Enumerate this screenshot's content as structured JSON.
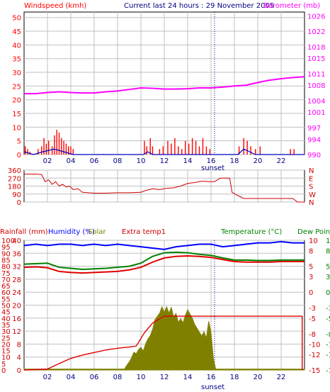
{
  "header": {
    "windspeed_label": "Windspeed (kmh)",
    "title": "Current last 24 hours : 29 November 2005",
    "barometer_label": "Barometer (mb)"
  },
  "bottom_header": {
    "rainfall_label": "Rainfall (mm)",
    "humidity_label": "Humidity (%)",
    "solar_label": "Solar",
    "extra_label": "Extra temp1",
    "temperature_label": "Temperature (°C)",
    "dewpoint_label": "Dew Point"
  },
  "colors": {
    "wind": "#ff0000",
    "gust": "#0000c0",
    "barometer": "#ff00ff",
    "direction": "#d00000",
    "humidity": "#0000ff",
    "temperature": "#e00000",
    "dewpoint": "#008000",
    "solar": "#808000",
    "rain": "#e00000",
    "extra": "#e00000",
    "frame": "#000000",
    "grid": "#c0c0c0",
    "sunset": "#000080"
  },
  "chart_data": [
    {
      "type": "bar",
      "title": "Windspeed (kmh) / Barometer (mb)",
      "x_ticks": [
        "02",
        "04",
        "06",
        "08",
        "10",
        "12",
        "14",
        "16",
        "18",
        "20",
        "22"
      ],
      "x_tick_hours": [
        2,
        4,
        6,
        8,
        10,
        12,
        14,
        16,
        18,
        20,
        22
      ],
      "sunset_label": "sunset",
      "sunset_hour": 16.3,
      "y_left_ticks": [
        0,
        5,
        10,
        15,
        20,
        25,
        30,
        35,
        40,
        45,
        50
      ],
      "y_left_range": [
        0,
        52
      ],
      "y_right_ticks": [
        990,
        994,
        997,
        1001,
        1004,
        1008,
        1011,
        1015,
        1018,
        1022,
        1026
      ],
      "y_right_range": [
        990,
        1027
      ],
      "wind_bars": [
        {
          "h": 0.1,
          "v": 3
        },
        {
          "h": 0.3,
          "v": 2
        },
        {
          "h": 0.5,
          "v": 1
        },
        {
          "h": 1.2,
          "v": 2
        },
        {
          "h": 1.5,
          "v": 3
        },
        {
          "h": 1.7,
          "v": 6
        },
        {
          "h": 1.9,
          "v": 4
        },
        {
          "h": 2.1,
          "v": 5
        },
        {
          "h": 2.4,
          "v": 3
        },
        {
          "h": 2.6,
          "v": 7
        },
        {
          "h": 2.8,
          "v": 9
        },
        {
          "h": 3.0,
          "v": 8
        },
        {
          "h": 3.2,
          "v": 6
        },
        {
          "h": 3.4,
          "v": 5
        },
        {
          "h": 3.6,
          "v": 4
        },
        {
          "h": 3.8,
          "v": 3
        },
        {
          "h": 4.0,
          "v": 3
        },
        {
          "h": 4.2,
          "v": 2
        },
        {
          "h": 10.3,
          "v": 5
        },
        {
          "h": 10.5,
          "v": 3
        },
        {
          "h": 10.8,
          "v": 6
        },
        {
          "h": 11.0,
          "v": 3
        },
        {
          "h": 11.6,
          "v": 2
        },
        {
          "h": 11.9,
          "v": 3
        },
        {
          "h": 12.3,
          "v": 5
        },
        {
          "h": 12.6,
          "v": 4
        },
        {
          "h": 12.9,
          "v": 6
        },
        {
          "h": 13.2,
          "v": 3
        },
        {
          "h": 13.5,
          "v": 2
        },
        {
          "h": 13.8,
          "v": 5
        },
        {
          "h": 14.1,
          "v": 4
        },
        {
          "h": 14.4,
          "v": 6
        },
        {
          "h": 14.7,
          "v": 5
        },
        {
          "h": 15.0,
          "v": 3
        },
        {
          "h": 15.3,
          "v": 6
        },
        {
          "h": 15.6,
          "v": 3
        },
        {
          "h": 15.9,
          "v": 2
        },
        {
          "h": 18.4,
          "v": 3
        },
        {
          "h": 18.8,
          "v": 6
        },
        {
          "h": 19.1,
          "v": 5
        },
        {
          "h": 19.4,
          "v": 3
        },
        {
          "h": 19.8,
          "v": 2
        },
        {
          "h": 20.2,
          "v": 3
        },
        {
          "h": 22.8,
          "v": 2
        },
        {
          "h": 23.1,
          "v": 2
        }
      ],
      "gust_line": [
        {
          "h": 0,
          "v": 1
        },
        {
          "h": 0.8,
          "v": 0
        },
        {
          "h": 1.6,
          "v": 1
        },
        {
          "h": 2.6,
          "v": 2
        },
        {
          "h": 3.4,
          "v": 1
        },
        {
          "h": 4.2,
          "v": 0
        },
        {
          "h": 10.2,
          "v": 0
        },
        {
          "h": 10.6,
          "v": 1
        },
        {
          "h": 11.0,
          "v": 0
        },
        {
          "h": 18.3,
          "v": 0
        },
        {
          "h": 18.8,
          "v": 2
        },
        {
          "h": 19.3,
          "v": 1
        },
        {
          "h": 19.8,
          "v": 0
        },
        {
          "h": 24,
          "v": 0
        }
      ],
      "barometer": [
        {
          "h": 0,
          "v": 1005.8
        },
        {
          "h": 1,
          "v": 1005.8
        },
        {
          "h": 2,
          "v": 1006.1
        },
        {
          "h": 3,
          "v": 1006.3
        },
        {
          "h": 4,
          "v": 1006.1
        },
        {
          "h": 5,
          "v": 1006.0
        },
        {
          "h": 6,
          "v": 1006.0
        },
        {
          "h": 7,
          "v": 1006.3
        },
        {
          "h": 8,
          "v": 1006.5
        },
        {
          "h": 9,
          "v": 1006.9
        },
        {
          "h": 10,
          "v": 1007.3
        },
        {
          "h": 11,
          "v": 1007.2
        },
        {
          "h": 12,
          "v": 1007.0
        },
        {
          "h": 13,
          "v": 1007.0
        },
        {
          "h": 14,
          "v": 1007.1
        },
        {
          "h": 15,
          "v": 1007.3
        },
        {
          "h": 16,
          "v": 1007.3
        },
        {
          "h": 17,
          "v": 1007.5
        },
        {
          "h": 18,
          "v": 1007.8
        },
        {
          "h": 19,
          "v": 1008.0
        },
        {
          "h": 20,
          "v": 1008.7
        },
        {
          "h": 21,
          "v": 1009.3
        },
        {
          "h": 22,
          "v": 1009.7
        },
        {
          "h": 23,
          "v": 1010.0
        },
        {
          "h": 24,
          "v": 1010.2
        }
      ]
    },
    {
      "type": "line",
      "title": "Wind direction",
      "y_left_ticks": [
        0,
        90,
        180,
        270,
        360
      ],
      "y_range": [
        0,
        360
      ],
      "y_right_labels": [
        "N",
        "W",
        "S",
        "E",
        "N"
      ],
      "direction": [
        {
          "h": 0,
          "v": 315
        },
        {
          "h": 1,
          "v": 315
        },
        {
          "h": 1.5,
          "v": 310
        },
        {
          "h": 1.8,
          "v": 230
        },
        {
          "h": 2.1,
          "v": 250
        },
        {
          "h": 2.4,
          "v": 200
        },
        {
          "h": 2.7,
          "v": 230
        },
        {
          "h": 3.0,
          "v": 180
        },
        {
          "h": 3.3,
          "v": 200
        },
        {
          "h": 3.6,
          "v": 170
        },
        {
          "h": 3.9,
          "v": 180
        },
        {
          "h": 4.2,
          "v": 140
        },
        {
          "h": 4.6,
          "v": 150
        },
        {
          "h": 5,
          "v": 110
        },
        {
          "h": 6,
          "v": 100
        },
        {
          "h": 7,
          "v": 100
        },
        {
          "h": 8,
          "v": 105
        },
        {
          "h": 9,
          "v": 105
        },
        {
          "h": 10,
          "v": 110
        },
        {
          "h": 10.4,
          "v": 130
        },
        {
          "h": 11,
          "v": 150
        },
        {
          "h": 11.6,
          "v": 140
        },
        {
          "h": 12.2,
          "v": 155
        },
        {
          "h": 12.8,
          "v": 160
        },
        {
          "h": 13.4,
          "v": 180
        },
        {
          "h": 14,
          "v": 210
        },
        {
          "h": 14.6,
          "v": 220
        },
        {
          "h": 15.2,
          "v": 235
        },
        {
          "h": 15.8,
          "v": 230
        },
        {
          "h": 16.3,
          "v": 230
        },
        {
          "h": 16.8,
          "v": 270
        },
        {
          "h": 17.6,
          "v": 270
        },
        {
          "h": 17.8,
          "v": 110
        },
        {
          "h": 18.2,
          "v": 80
        },
        {
          "h": 18.5,
          "v": 60
        },
        {
          "h": 18.8,
          "v": 40
        },
        {
          "h": 19.2,
          "v": 40
        },
        {
          "h": 20,
          "v": 40
        },
        {
          "h": 21,
          "v": 40
        },
        {
          "h": 22,
          "v": 40
        },
        {
          "h": 23,
          "v": 40
        },
        {
          "h": 23.4,
          "v": 0
        },
        {
          "h": 24,
          "v": 0
        }
      ]
    },
    {
      "type": "line",
      "title": "Rainfall / Humidity / Solar / Extra temp1 / Temperature / Dew Point",
      "x_ticks": [
        "02",
        "04",
        "06",
        "08",
        "10",
        "12",
        "14",
        "16",
        "18",
        "20",
        "22"
      ],
      "x_tick_hours": [
        2,
        4,
        6,
        8,
        10,
        12,
        14,
        16,
        18,
        20,
        22
      ],
      "sunset_label": "sunset",
      "sunset_hour": 16.3,
      "y_left_outer_ticks": [
        0,
        5,
        10,
        15,
        20,
        25,
        30,
        35,
        40,
        45,
        50,
        55,
        60,
        65,
        70,
        75,
        80,
        85,
        90,
        95,
        100
      ],
      "y_left_inner_ticks": [
        0,
        4,
        8,
        12,
        16,
        20,
        24,
        28,
        32,
        36,
        40
      ],
      "y_right_inner_ticks": [
        -15,
        -12,
        -10,
        -8,
        -5,
        -3,
        0,
        3,
        5,
        8,
        10
      ],
      "y_right_outer_ticks": [
        -15,
        -12,
        -10,
        -8,
        -5,
        -3,
        0,
        3,
        5,
        8,
        10
      ],
      "humidity": [
        {
          "h": 0,
          "v": 96
        },
        {
          "h": 1,
          "v": 97
        },
        {
          "h": 2,
          "v": 96
        },
        {
          "h": 3,
          "v": 97
        },
        {
          "h": 4,
          "v": 97
        },
        {
          "h": 5,
          "v": 96
        },
        {
          "h": 6,
          "v": 97
        },
        {
          "h": 7,
          "v": 96
        },
        {
          "h": 8,
          "v": 97
        },
        {
          "h": 9,
          "v": 96
        },
        {
          "h": 10,
          "v": 95
        },
        {
          "h": 11,
          "v": 94
        },
        {
          "h": 12,
          "v": 93
        },
        {
          "h": 13,
          "v": 95
        },
        {
          "h": 14,
          "v": 96
        },
        {
          "h": 15,
          "v": 97
        },
        {
          "h": 16,
          "v": 97
        },
        {
          "h": 17,
          "v": 95
        },
        {
          "h": 18,
          "v": 96
        },
        {
          "h": 19,
          "v": 97
        },
        {
          "h": 20,
          "v": 98
        },
        {
          "h": 21,
          "v": 98
        },
        {
          "h": 22,
          "v": 99
        },
        {
          "h": 23,
          "v": 98
        },
        {
          "h": 24,
          "v": 98
        }
      ],
      "temperature": [
        {
          "h": 0,
          "v": 4.8
        },
        {
          "h": 1,
          "v": 4.9
        },
        {
          "h": 2,
          "v": 4.7
        },
        {
          "h": 3,
          "v": 4.0
        },
        {
          "h": 4,
          "v": 3.8
        },
        {
          "h": 5,
          "v": 3.7
        },
        {
          "h": 6,
          "v": 3.8
        },
        {
          "h": 7,
          "v": 3.9
        },
        {
          "h": 8,
          "v": 4.0
        },
        {
          "h": 9,
          "v": 4.3
        },
        {
          "h": 10,
          "v": 4.8
        },
        {
          "h": 11,
          "v": 5.8
        },
        {
          "h": 12,
          "v": 6.6
        },
        {
          "h": 13,
          "v": 6.9
        },
        {
          "h": 14,
          "v": 7.0
        },
        {
          "h": 15,
          "v": 6.9
        },
        {
          "h": 16,
          "v": 6.7
        },
        {
          "h": 17,
          "v": 6.3
        },
        {
          "h": 18,
          "v": 5.9
        },
        {
          "h": 19,
          "v": 5.8
        },
        {
          "h": 20,
          "v": 5.8
        },
        {
          "h": 21,
          "v": 5.8
        },
        {
          "h": 22,
          "v": 5.9
        },
        {
          "h": 23,
          "v": 5.9
        },
        {
          "h": 24,
          "v": 5.9
        }
      ],
      "dew_point": [
        {
          "h": 0,
          "v": 5.4
        },
        {
          "h": 1,
          "v": 5.5
        },
        {
          "h": 2,
          "v": 5.6
        },
        {
          "h": 3,
          "v": 4.8
        },
        {
          "h": 4,
          "v": 4.6
        },
        {
          "h": 5,
          "v": 4.4
        },
        {
          "h": 6,
          "v": 4.5
        },
        {
          "h": 7,
          "v": 4.6
        },
        {
          "h": 8,
          "v": 4.8
        },
        {
          "h": 9,
          "v": 5.0
        },
        {
          "h": 10,
          "v": 5.6
        },
        {
          "h": 11,
          "v": 6.9
        },
        {
          "h": 12,
          "v": 7.6
        },
        {
          "h": 13,
          "v": 7.7
        },
        {
          "h": 14,
          "v": 7.6
        },
        {
          "h": 15,
          "v": 7.3
        },
        {
          "h": 16,
          "v": 7.1
        },
        {
          "h": 17,
          "v": 6.6
        },
        {
          "h": 18,
          "v": 6.2
        },
        {
          "h": 19,
          "v": 6.2
        },
        {
          "h": 20,
          "v": 6.1
        },
        {
          "h": 21,
          "v": 6.1
        },
        {
          "h": 22,
          "v": 6.2
        },
        {
          "h": 23,
          "v": 6.2
        },
        {
          "h": 24,
          "v": 6.2
        }
      ],
      "rainfall": [
        {
          "h": 0,
          "v": 0
        },
        {
          "h": 2,
          "v": 0.3
        },
        {
          "h": 3,
          "v": 2.0
        },
        {
          "h": 4,
          "v": 3.6
        },
        {
          "h": 5,
          "v": 4.6
        },
        {
          "h": 6,
          "v": 5.4
        },
        {
          "h": 7,
          "v": 6.2
        },
        {
          "h": 8,
          "v": 6.7
        },
        {
          "h": 9,
          "v": 7.1
        },
        {
          "h": 9.6,
          "v": 7.4
        },
        {
          "h": 10.3,
          "v": 11.5
        },
        {
          "h": 11,
          "v": 14.5
        },
        {
          "h": 11.7,
          "v": 16.0
        },
        {
          "h": 12,
          "v": 16.6
        },
        {
          "h": 23.8,
          "v": 16.6
        },
        {
          "h": 23.8,
          "v": 0
        }
      ],
      "solar": [
        {
          "h": 0,
          "v": 0.3
        },
        {
          "h": 8.6,
          "v": 0.3
        },
        {
          "h": 8.8,
          "v": 1.5
        },
        {
          "h": 9.1,
          "v": 3
        },
        {
          "h": 9.4,
          "v": 5.5
        },
        {
          "h": 9.6,
          "v": 5
        },
        {
          "h": 9.8,
          "v": 6.3
        },
        {
          "h": 10.0,
          "v": 7
        },
        {
          "h": 10.2,
          "v": 5.8
        },
        {
          "h": 10.4,
          "v": 8
        },
        {
          "h": 10.6,
          "v": 9.6
        },
        {
          "h": 10.8,
          "v": 10.6
        },
        {
          "h": 11.0,
          "v": 12.5
        },
        {
          "h": 11.2,
          "v": 15.5
        },
        {
          "h": 11.4,
          "v": 16.5
        },
        {
          "h": 11.6,
          "v": 17.5
        },
        {
          "h": 11.8,
          "v": 19.5
        },
        {
          "h": 12.0,
          "v": 17.7
        },
        {
          "h": 12.2,
          "v": 19.5
        },
        {
          "h": 12.4,
          "v": 17.5
        },
        {
          "h": 12.6,
          "v": 19.3
        },
        {
          "h": 12.8,
          "v": 16.3
        },
        {
          "h": 13.0,
          "v": 17.4
        },
        {
          "h": 13.2,
          "v": 14.7
        },
        {
          "h": 13.4,
          "v": 15.8
        },
        {
          "h": 13.6,
          "v": 14.5
        },
        {
          "h": 13.8,
          "v": 16.8
        },
        {
          "h": 14.0,
          "v": 18.6
        },
        {
          "h": 14.2,
          "v": 17.2
        },
        {
          "h": 14.4,
          "v": 16
        },
        {
          "h": 14.6,
          "v": 14
        },
        {
          "h": 14.8,
          "v": 12.9
        },
        {
          "h": 15.0,
          "v": 11.7
        },
        {
          "h": 15.2,
          "v": 10.5
        },
        {
          "h": 15.4,
          "v": 11.8
        },
        {
          "h": 15.6,
          "v": 9.8
        },
        {
          "h": 15.8,
          "v": 15
        },
        {
          "h": 16.0,
          "v": 11.5
        },
        {
          "h": 16.2,
          "v": 3.5
        },
        {
          "h": 16.4,
          "v": 0.3
        },
        {
          "h": 24,
          "v": 0.3
        }
      ]
    }
  ]
}
